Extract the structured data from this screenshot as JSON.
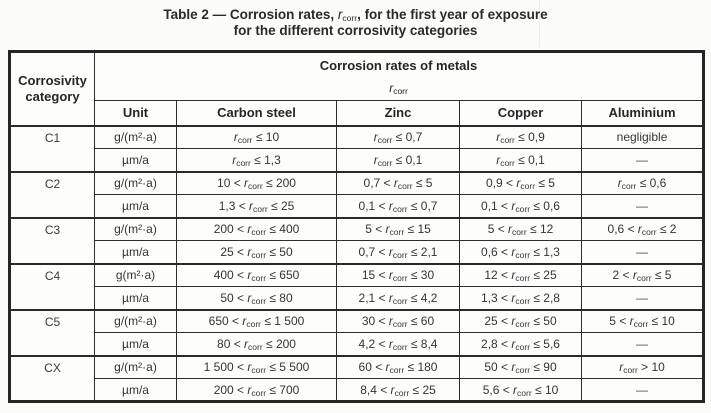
{
  "title": {
    "line1_pre": "Table 2 — Corrosion rates, ",
    "symbol_letter": "r",
    "symbol_sub": "corr",
    "line1_post": ", for the first year of exposure",
    "line2": "for the different corrosivity categories"
  },
  "table": {
    "header": {
      "corrosivity_line1": "Corrosivity",
      "corrosivity_line2": "category",
      "group_title": "Corrosion rates of metals",
      "symbol_letter": "r",
      "symbol_sub": "corr",
      "unit_label": "Unit",
      "metal_columns": [
        "Carbon steel",
        "Zinc",
        "Copper",
        "Aluminium"
      ]
    },
    "rows": [
      {
        "category": "C1",
        "lines": [
          {
            "unit": "g/(m²·a)",
            "cells": [
              {
                "pre": "",
                "post": " ≤ 10"
              },
              {
                "pre": "",
                "post": " ≤ 0,7"
              },
              {
                "pre": "",
                "post": " ≤ 0,9"
              },
              {
                "text": "negligible"
              }
            ]
          },
          {
            "unit": "µm/a",
            "cells": [
              {
                "pre": "",
                "post": " ≤ 1,3"
              },
              {
                "pre": "",
                "post": " ≤ 0,1"
              },
              {
                "pre": "",
                "post": " ≤ 0,1"
              },
              {
                "text": "—"
              }
            ]
          }
        ]
      },
      {
        "category": "C2",
        "lines": [
          {
            "unit": "g/(m²·a)",
            "cells": [
              {
                "pre": "10 < ",
                "post": " ≤ 200"
              },
              {
                "pre": "0,7 < ",
                "post": " ≤ 5"
              },
              {
                "pre": "0,9 < ",
                "post": " ≤ 5"
              },
              {
                "pre": "",
                "post": " ≤ 0,6"
              }
            ]
          },
          {
            "unit": "µm/a",
            "cells": [
              {
                "pre": "1,3 < ",
                "post": " ≤ 25"
              },
              {
                "pre": "0,1 < ",
                "post": " ≤ 0,7"
              },
              {
                "pre": "0,1 < ",
                "post": " ≤ 0,6"
              },
              {
                "text": "—"
              }
            ]
          }
        ]
      },
      {
        "category": "C3",
        "lines": [
          {
            "unit": "g/(m²·a)",
            "cells": [
              {
                "pre": "200 < ",
                "post": " ≤ 400"
              },
              {
                "pre": "5 < ",
                "post": " ≤ 15"
              },
              {
                "pre": "5 < ",
                "post": " ≤ 12"
              },
              {
                "pre": "0,6 < ",
                "post": " ≤ 2"
              }
            ]
          },
          {
            "unit": "µm/a",
            "cells": [
              {
                "pre": "25 < ",
                "post": " ≤ 50"
              },
              {
                "pre": "0,7 < ",
                "post": " ≤ 2,1"
              },
              {
                "pre": "0,6 < ",
                "post": " ≤ 1,3"
              },
              {
                "text": "—"
              }
            ]
          }
        ]
      },
      {
        "category": "C4",
        "lines": [
          {
            "unit": "g(m²·a)",
            "cells": [
              {
                "pre": "400 < ",
                "post": " ≤ 650"
              },
              {
                "pre": "15 < ",
                "post": " ≤ 30"
              },
              {
                "pre": "12 < ",
                "post": " ≤ 25"
              },
              {
                "pre": "2 < ",
                "post": " ≤ 5"
              }
            ]
          },
          {
            "unit": "µm/a",
            "cells": [
              {
                "pre": "50 < ",
                "post": " ≤ 80"
              },
              {
                "pre": "2,1 < ",
                "post": " ≤ 4,2"
              },
              {
                "pre": "1,3 < ",
                "post": " ≤ 2,8"
              },
              {
                "text": "—"
              }
            ]
          }
        ]
      },
      {
        "category": "C5",
        "lines": [
          {
            "unit": "g/(m²·a)",
            "cells": [
              {
                "pre": "650 < ",
                "post": " ≤ 1 500"
              },
              {
                "pre": "30 < ",
                "post": " ≤ 60"
              },
              {
                "pre": "25 < ",
                "post": " ≤ 50"
              },
              {
                "pre": "5 < ",
                "post": " ≤ 10"
              }
            ]
          },
          {
            "unit": "µm/a",
            "cells": [
              {
                "pre": "80 < ",
                "post": " ≤ 200"
              },
              {
                "pre": "4,2 < ",
                "post": " ≤ 8,4"
              },
              {
                "pre": "2,8 < ",
                "post": " ≤ 5,6"
              },
              {
                "text": "—"
              }
            ]
          }
        ]
      },
      {
        "category": "CX",
        "lines": [
          {
            "unit": "g/(m²·a)",
            "cells": [
              {
                "pre": "1 500 < ",
                "post": " ≤ 5 500"
              },
              {
                "pre": "60 < ",
                "post": " ≤ 180"
              },
              {
                "pre": "50 < ",
                "post": " ≤ 90"
              },
              {
                "pre": "",
                "post": " > 10"
              }
            ]
          },
          {
            "unit": "µm/a",
            "cells": [
              {
                "pre": "200 < ",
                "post": " ≤ 700"
              },
              {
                "pre": "8,4 < ",
                "post": " ≤ 25"
              },
              {
                "pre": "5,6 < ",
                "post": " ≤ 10"
              },
              {
                "text": "—"
              }
            ]
          }
        ]
      }
    ]
  },
  "colors": {
    "page_background": "#fbfbf9",
    "table_background": "#fdfdfc",
    "border": "#2a2a2a",
    "text": "#343434"
  }
}
